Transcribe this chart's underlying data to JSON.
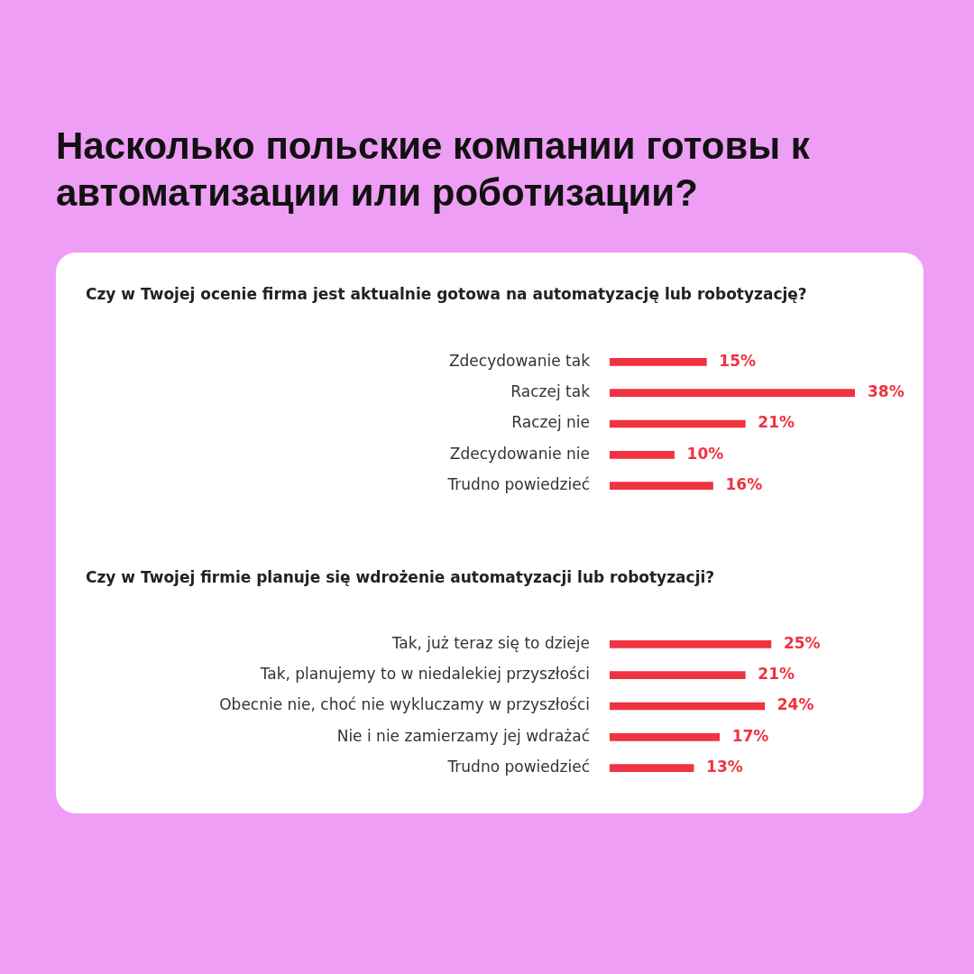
{
  "chart_data": [
    {
      "type": "bar",
      "orientation": "horizontal",
      "title": "Насколько польские компании готовы к автоматизации или роботизации?",
      "subtitle": "Czy w Twojej ocenie firma jest aktualnie gotowa na automatyzację lub robotyzację?",
      "categories": [
        "Zdecydowanie tak",
        "Raczej tak",
        "Raczej nie",
        "Zdecydowanie nie",
        "Trudno powiedzieć"
      ],
      "values": [
        15,
        38,
        21,
        10,
        16
      ],
      "value_labels": [
        "15%",
        "38%",
        "21%",
        "10%",
        "16%"
      ],
      "color": "#ef3340",
      "grid": false,
      "legend": false,
      "tick_labels": "y"
    },
    {
      "type": "bar",
      "orientation": "horizontal",
      "title": "Czy w Twojej firmie planuje się wdrożenie automatyzacji lub robotyzacji?",
      "categories": [
        "Tak, już teraz się to dzieje",
        "Tak, planujemy to w niedalekiej przyszłości",
        "Obecnie nie, choć nie wykluczamy w przyszłości",
        "Nie i nie zamierzamy jej wdrażać",
        "Trudno powiedzieć"
      ],
      "values": [
        25,
        21,
        24,
        17,
        13
      ],
      "value_labels": [
        "25%",
        "21%",
        "24%",
        "17%",
        "13%"
      ],
      "color": "#ef3340",
      "grid": false,
      "legend": false,
      "tick_labels": "y"
    }
  ]
}
